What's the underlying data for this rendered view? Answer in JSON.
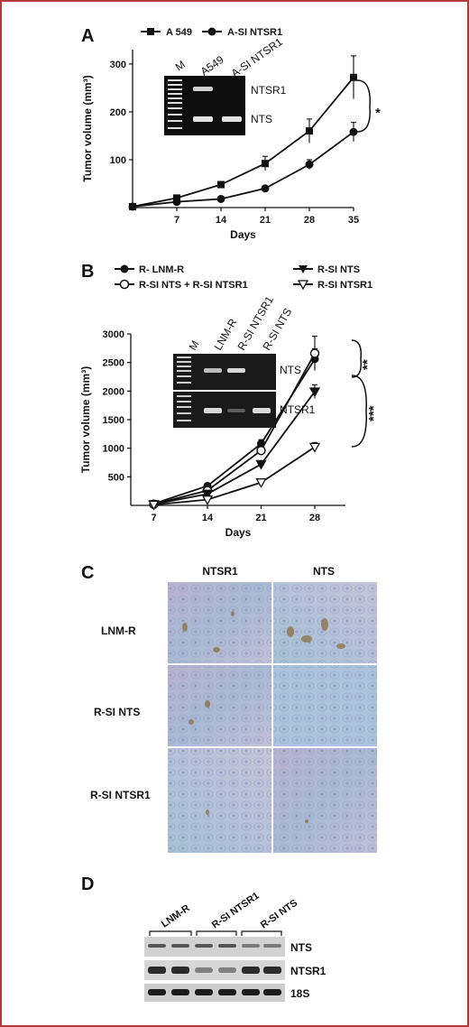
{
  "panel_a": {
    "letter": "A",
    "legend": [
      "A 549",
      "A-SI NTSR1"
    ],
    "inset": {
      "lanes": [
        "M",
        "A549",
        "A-SI NTSR1"
      ],
      "bands": [
        "NTSR1",
        "NTS"
      ]
    },
    "significance": "*"
  },
  "panel_b": {
    "letter": "B",
    "legend": [
      "R- LNM-R",
      "R-SI NTS",
      "R-SI NTS + R-SI NTSR1",
      "R-SI NTSR1"
    ],
    "inset": {
      "lanes": [
        "M",
        "LNM-R",
        "R-SI NTSR1",
        "R-SI NTS"
      ],
      "bands": [
        "NTS",
        "NTSR1"
      ]
    },
    "significance": [
      "**",
      "***"
    ]
  },
  "panel_c": {
    "letter": "C",
    "columns": [
      "NTSR1",
      "NTS"
    ],
    "rows": [
      "LNM-R",
      "R-SI NTS",
      "R-SI NTSR1"
    ]
  },
  "panel_d": {
    "letter": "D",
    "groups": [
      "LNM-R",
      "R-SI NTSR1",
      "R-SI NTS"
    ],
    "bands": [
      "NTS",
      "NTSR1",
      "18S"
    ]
  },
  "chart_data": [
    {
      "type": "line",
      "xlabel": "Days",
      "ylabel": "Tumor volume (mm³)",
      "x": [
        0,
        7,
        14,
        21,
        28,
        35
      ],
      "x_ticks": [
        7,
        14,
        21,
        28,
        35
      ],
      "y_ticks": [
        100,
        200,
        300
      ],
      "xlim": [
        0,
        35
      ],
      "ylim": [
        0,
        330
      ],
      "series": [
        {
          "name": "A 549",
          "marker": "square",
          "values": [
            2,
            20,
            48,
            92,
            160,
            272
          ],
          "err": [
            2,
            5,
            6,
            15,
            25,
            45
          ]
        },
        {
          "name": "A-SI NTSR1",
          "marker": "circle",
          "values": [
            2,
            12,
            18,
            40,
            90,
            158
          ],
          "err": [
            1,
            3,
            3,
            4,
            10,
            20
          ]
        }
      ]
    },
    {
      "type": "line",
      "xlabel": "Days",
      "ylabel": "Tumor volume (mm³)",
      "x": [
        7,
        14,
        21,
        28
      ],
      "x_ticks": [
        7,
        14,
        21,
        28
      ],
      "y_ticks": [
        500,
        1000,
        1500,
        2000,
        2500,
        3000
      ],
      "xlim": [
        4,
        32
      ],
      "ylim": [
        0,
        3000
      ],
      "series": [
        {
          "name": "R- LNM-R",
          "marker": "circle-filled",
          "values": [
            30,
            340,
            1080,
            2560
          ],
          "err": [
            10,
            30,
            70,
            180
          ]
        },
        {
          "name": "R-SI NTS + R-SI NTSR1",
          "marker": "circle-open",
          "values": [
            20,
            260,
            960,
            2660
          ],
          "err": [
            10,
            25,
            70,
            300
          ]
        },
        {
          "name": "R-SI NTS",
          "marker": "triangle-down-filled",
          "values": [
            20,
            200,
            720,
            1990
          ],
          "err": [
            8,
            20,
            60,
            120
          ]
        },
        {
          "name": "R-SI NTSR1",
          "marker": "triangle-down-open",
          "values": [
            10,
            100,
            400,
            1020
          ],
          "err": [
            5,
            15,
            40,
            80
          ]
        }
      ]
    }
  ]
}
